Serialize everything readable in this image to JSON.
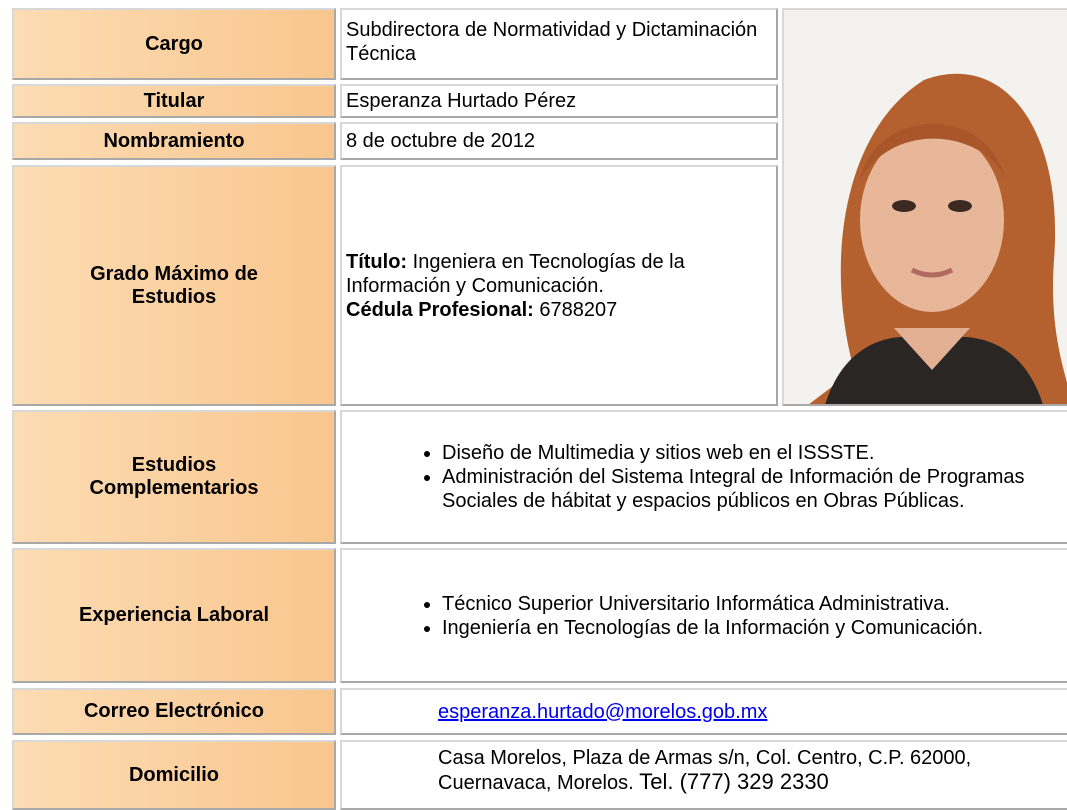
{
  "profile": {
    "cargo": {
      "label": "Cargo",
      "value": "Subdirectora de Normatividad y Dictaminación Técnica"
    },
    "titular": {
      "label": "Titular",
      "value": "Esperanza Hurtado Pérez"
    },
    "nombramiento": {
      "label": "Nombramiento",
      "value": "8 de octubre de 2012"
    },
    "grado": {
      "label": "Grado Máximo de Estudios",
      "titulo_label": "Título:",
      "titulo": "Ingeniera en Tecnologías de la Información y Comunicación.",
      "cedula_label": "Cédula Profesional:",
      "cedula": "6788207"
    },
    "estudios": {
      "label": "Estudios Complementarios",
      "items": [
        "Diseño de Multimedia y sitios web en el ISSSTE.",
        "Administración  del Sistema Integral de Información de Programas Sociales de hábitat y espacios públicos en Obras Públicas."
      ]
    },
    "experiencia": {
      "label": "Experiencia Laboral",
      "items": [
        "Técnico Superior Universitario Informática Administrativa.",
        "Ingeniería en Tecnologías de la Información y Comunicación."
      ]
    },
    "correo": {
      "label": "Correo Electrónico",
      "value": "esperanza.hurtado@morelos.gob.mx"
    },
    "domicilio": {
      "label": "Domicilio",
      "value": "Casa Morelos, Plaza de Armas s/n, Col. Centro, C.P. 62000, Cuernavaca, Morelos.",
      "phone": "Tel. (777) 329 2330"
    }
  }
}
